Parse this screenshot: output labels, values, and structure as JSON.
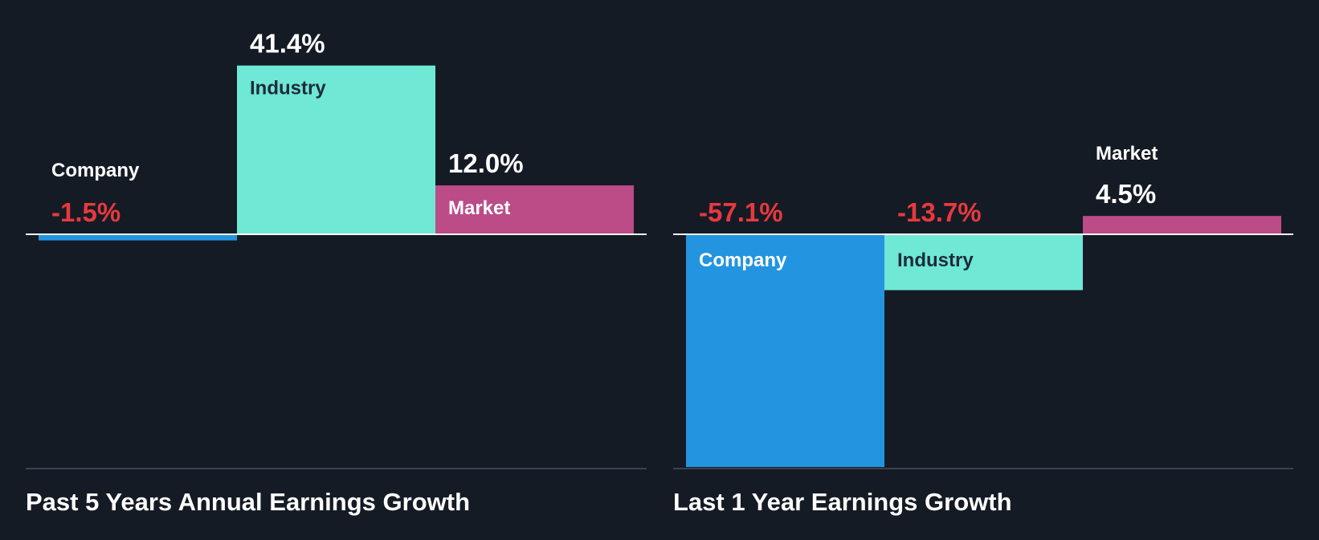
{
  "colors": {
    "background": "#151b24",
    "company": "#2394df",
    "industry": "#6fe8d6",
    "market": "#bb4c88",
    "positive_text": "#ffffff",
    "negative_text": "#e9383f",
    "baseline": "#ffffff",
    "axis": "#3a4250",
    "title": "#ffffff"
  },
  "chart_data": [
    {
      "type": "bar",
      "title": "Past 5 Years Annual Earnings Growth",
      "categories": [
        "Company",
        "Industry",
        "Market"
      ],
      "values": [
        -1.5,
        41.4,
        12.0
      ],
      "value_labels": [
        "-1.5%",
        "41.4%",
        "12.0%"
      ],
      "unit": "%",
      "ylim": [
        -59,
        43.5
      ]
    },
    {
      "type": "bar",
      "title": "Last 1 Year Earnings Growth",
      "categories": [
        "Company",
        "Industry",
        "Market"
      ],
      "values": [
        -57.1,
        -13.7,
        4.5
      ],
      "value_labels": [
        "-57.1%",
        "-13.7%",
        "4.5%"
      ],
      "unit": "%",
      "ylim": [
        -59,
        43.5
      ]
    }
  ]
}
